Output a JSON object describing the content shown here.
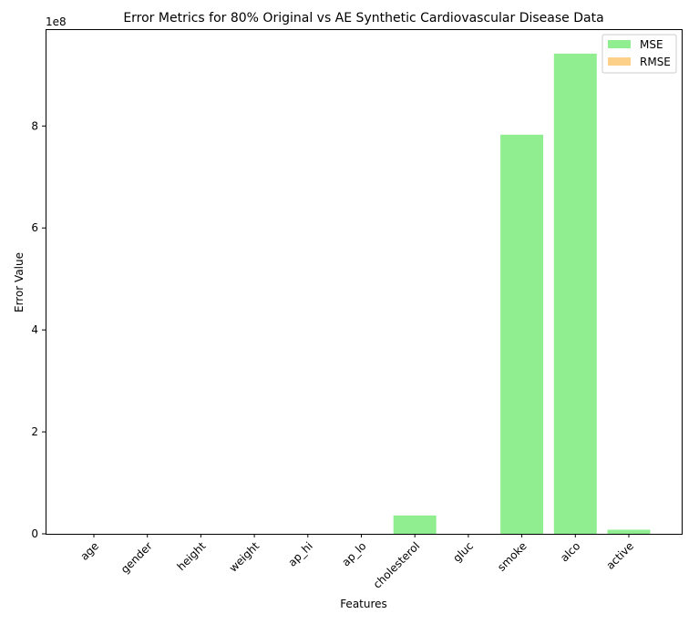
{
  "chart_data": {
    "type": "bar",
    "title": "Error Metrics for 80% Original vs AE Synthetic Cardiovascular Disease Data",
    "xlabel": "Features",
    "ylabel": "Error Value",
    "y_offset_label": "1e8",
    "categories": [
      "age",
      "gender",
      "height",
      "weight",
      "ap_hi",
      "ap_lo",
      "cholesterol",
      "gluc",
      "smoke",
      "alco",
      "active"
    ],
    "series": [
      {
        "name": "MSE",
        "color": "#90ee90",
        "values": [
          0,
          0,
          0,
          0,
          0,
          0,
          36000000,
          0,
          783000000,
          942000000,
          8000000
        ]
      },
      {
        "name": "RMSE",
        "color": "#fdd08a",
        "values": [
          0,
          0,
          0,
          0,
          0,
          0,
          0,
          0,
          0,
          0,
          0
        ]
      }
    ],
    "yticks": [
      0,
      200000000,
      400000000,
      600000000,
      800000000
    ],
    "ytick_labels": [
      "0",
      "2",
      "4",
      "6",
      "8"
    ],
    "ylim": [
      0,
      990000000
    ],
    "grid": false,
    "legend_position": "upper right"
  }
}
